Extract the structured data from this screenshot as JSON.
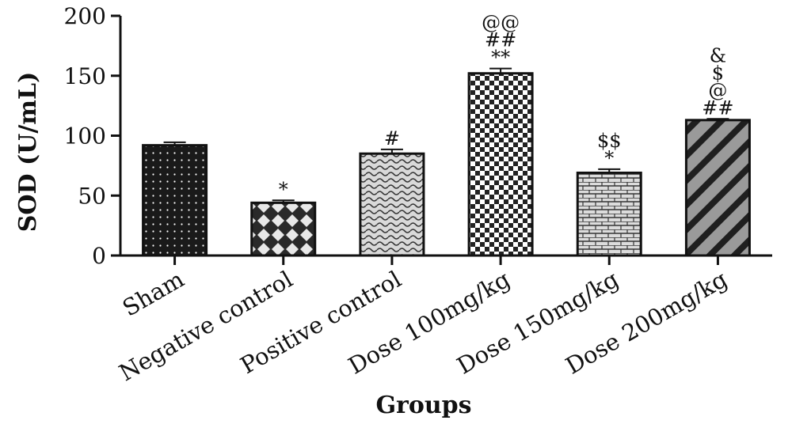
{
  "chart_data": {
    "type": "bar",
    "title": "",
    "xlabel": "Groups",
    "ylabel": "SOD (U/mL)",
    "ylim": [
      0,
      200
    ],
    "yticks": [
      0,
      50,
      100,
      150,
      200
    ],
    "yticks_labels": [
      "0",
      "50",
      "100",
      "150",
      "200"
    ],
    "grid": false,
    "categories": [
      "Sham",
      "Negative control",
      "Positive control",
      "Dose 100mg/kg",
      "Dose 150mg/kg",
      "Dose 200mg/kg"
    ],
    "values": [
      92,
      44,
      85,
      152,
      69,
      113
    ],
    "error": [
      2.5,
      2,
      3.5,
      4,
      3,
      1
    ],
    "annotations": [
      [],
      [
        "*"
      ],
      [
        "#"
      ],
      [
        "**",
        "##",
        "@@"
      ],
      [
        "*",
        "$$"
      ],
      [
        "##",
        "@",
        "$",
        "&"
      ]
    ],
    "patterns": [
      "dots",
      "diamonds",
      "wavy",
      "checker",
      "bricks",
      "diagonal"
    ],
    "colors": {
      "bar_fill": "#1a1a1a",
      "axis": "#111111"
    }
  }
}
